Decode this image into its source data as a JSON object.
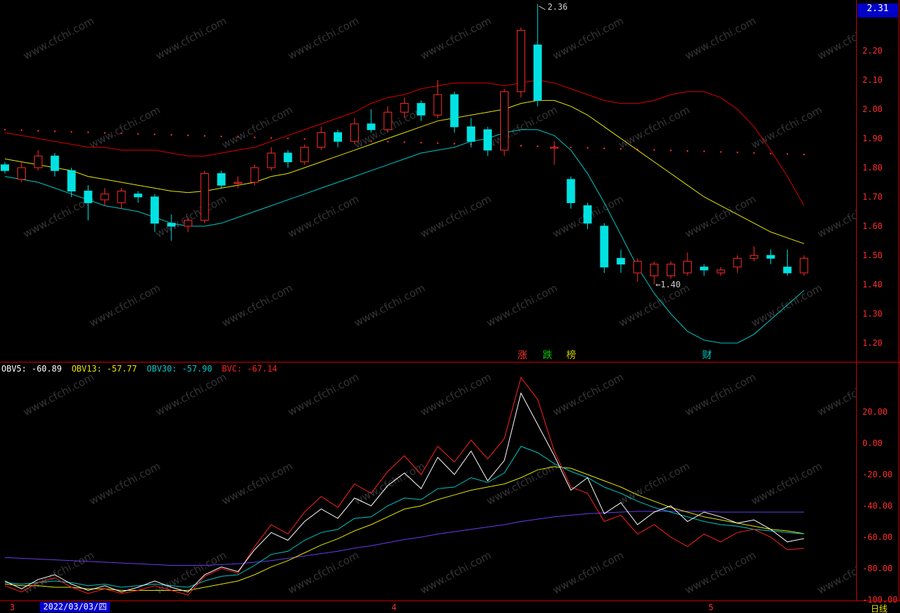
{
  "watermark": "www.cfchi.com",
  "price_tag": "2.31",
  "colors": {
    "background": "#000000",
    "frame": "#c80000",
    "axis_text": "#ff2d2d",
    "candle_up": "#ff2b2b",
    "candle_down": "#00e2e2",
    "boll_upper": "#dc0000",
    "boll_mid": "#e8e800",
    "boll_lower": "#00c8c8",
    "dot_line": "#ff2d2d",
    "obv5": "#ffffff",
    "obv13": "#e8e800",
    "obv30": "#00c8c8",
    "bvc": "#ff2020",
    "obv_extra": "#6a3cf0",
    "price_tag_bg": "#0000c8",
    "date_chip_bg": "#0000cc",
    "month_text": "#ff2d2d",
    "period_text": "#e8e800",
    "link_zhang": "#ff3232",
    "link_die": "#00c800",
    "link_bang": "#c8c800",
    "link_cai": "#00c8c8",
    "annotation_text": "#cfcfcf"
  },
  "divider": {
    "items": [
      {
        "label": "涨"
      },
      {
        "label": "跌"
      },
      {
        "label": "榜"
      },
      {
        "label": "财"
      }
    ]
  },
  "bottom_bar": {
    "months": [
      "3",
      "4",
      "5"
    ],
    "date_chip": "2022/03/03/四",
    "period": "日线"
  },
  "chart_data": [
    {
      "type": "candlestick",
      "title": "Daily K-line with BOLL bands",
      "y_axis_labels": [
        "2.20",
        "2.10",
        "2.00",
        "1.90",
        "1.80",
        "1.70",
        "1.60",
        "1.50",
        "1.40",
        "1.30",
        "1.20"
      ],
      "ylim": [
        1.18,
        2.37
      ],
      "annotations": {
        "high_label": "2.36",
        "low_label": "←1.40"
      },
      "dot_line": {
        "start": 1.93,
        "end": 1.845
      },
      "candles": [
        [
          1.81,
          1.82,
          1.78,
          1.79
        ],
        [
          1.76,
          1.82,
          1.75,
          1.8
        ],
        [
          1.8,
          1.86,
          1.79,
          1.84
        ],
        [
          1.84,
          1.85,
          1.77,
          1.79
        ],
        [
          1.79,
          1.8,
          1.7,
          1.72
        ],
        [
          1.72,
          1.74,
          1.62,
          1.68
        ],
        [
          1.69,
          1.73,
          1.67,
          1.71
        ],
        [
          1.68,
          1.73,
          1.66,
          1.72
        ],
        [
          1.71,
          1.72,
          1.68,
          1.7
        ],
        [
          1.7,
          1.71,
          1.58,
          1.61
        ],
        [
          1.61,
          1.64,
          1.55,
          1.6
        ],
        [
          1.6,
          1.63,
          1.58,
          1.62
        ],
        [
          1.62,
          1.79,
          1.61,
          1.78
        ],
        [
          1.78,
          1.79,
          1.73,
          1.74
        ],
        [
          1.75,
          1.77,
          1.73,
          1.75
        ],
        [
          1.75,
          1.81,
          1.74,
          1.8
        ],
        [
          1.8,
          1.87,
          1.79,
          1.85
        ],
        [
          1.85,
          1.86,
          1.8,
          1.82
        ],
        [
          1.82,
          1.88,
          1.81,
          1.87
        ],
        [
          1.87,
          1.94,
          1.86,
          1.92
        ],
        [
          1.92,
          1.93,
          1.87,
          1.89
        ],
        [
          1.89,
          1.97,
          1.88,
          1.95
        ],
        [
          1.95,
          2.0,
          1.92,
          1.93
        ],
        [
          1.93,
          2.01,
          1.92,
          1.99
        ],
        [
          1.99,
          2.04,
          1.97,
          2.02
        ],
        [
          2.02,
          2.03,
          1.96,
          1.98
        ],
        [
          1.98,
          2.1,
          1.97,
          2.05
        ],
        [
          2.05,
          2.06,
          1.92,
          1.94
        ],
        [
          1.94,
          1.97,
          1.87,
          1.89
        ],
        [
          1.93,
          1.94,
          1.84,
          1.86
        ],
        [
          1.86,
          2.07,
          1.84,
          2.06
        ],
        [
          2.06,
          2.28,
          2.04,
          2.27
        ],
        [
          2.22,
          2.36,
          2.01,
          2.03
        ],
        [
          1.87,
          1.89,
          1.81,
          1.87
        ],
        [
          1.76,
          1.77,
          1.66,
          1.68
        ],
        [
          1.67,
          1.68,
          1.59,
          1.61
        ],
        [
          1.6,
          1.61,
          1.44,
          1.46
        ],
        [
          1.49,
          1.52,
          1.44,
          1.47
        ],
        [
          1.44,
          1.49,
          1.41,
          1.48
        ],
        [
          1.43,
          1.48,
          1.4,
          1.47
        ],
        [
          1.43,
          1.48,
          1.42,
          1.47
        ],
        [
          1.44,
          1.51,
          1.43,
          1.48
        ],
        [
          1.46,
          1.47,
          1.43,
          1.45
        ],
        [
          1.44,
          1.46,
          1.43,
          1.45
        ],
        [
          1.46,
          1.5,
          1.44,
          1.49
        ],
        [
          1.49,
          1.53,
          1.48,
          1.5
        ],
        [
          1.5,
          1.52,
          1.47,
          1.49
        ],
        [
          1.46,
          1.52,
          1.43,
          1.44
        ],
        [
          1.44,
          1.5,
          1.43,
          1.49
        ]
      ],
      "boll": {
        "upper": [
          1.92,
          1.91,
          1.9,
          1.89,
          1.88,
          1.87,
          1.87,
          1.86,
          1.86,
          1.86,
          1.85,
          1.84,
          1.84,
          1.85,
          1.86,
          1.87,
          1.89,
          1.91,
          1.93,
          1.95,
          1.97,
          1.99,
          2.02,
          2.04,
          2.05,
          2.07,
          2.08,
          2.09,
          2.09,
          2.09,
          2.08,
          2.09,
          2.1,
          2.09,
          2.07,
          2.05,
          2.03,
          2.02,
          2.02,
          2.03,
          2.05,
          2.06,
          2.06,
          2.04,
          2.0,
          1.94,
          1.86,
          1.77,
          1.67
        ],
        "mid": [
          1.83,
          1.82,
          1.81,
          1.8,
          1.79,
          1.77,
          1.76,
          1.75,
          1.74,
          1.73,
          1.72,
          1.715,
          1.72,
          1.73,
          1.74,
          1.75,
          1.77,
          1.78,
          1.8,
          1.82,
          1.84,
          1.86,
          1.88,
          1.9,
          1.92,
          1.94,
          1.96,
          1.97,
          1.98,
          1.99,
          2.0,
          2.02,
          2.03,
          2.03,
          2.01,
          1.98,
          1.94,
          1.9,
          1.86,
          1.82,
          1.78,
          1.74,
          1.7,
          1.67,
          1.64,
          1.61,
          1.58,
          1.56,
          1.54
        ],
        "lower": [
          1.77,
          1.76,
          1.75,
          1.73,
          1.71,
          1.69,
          1.67,
          1.66,
          1.65,
          1.63,
          1.61,
          1.6,
          1.6,
          1.61,
          1.63,
          1.65,
          1.67,
          1.69,
          1.71,
          1.73,
          1.75,
          1.77,
          1.79,
          1.81,
          1.83,
          1.85,
          1.86,
          1.87,
          1.89,
          1.9,
          1.92,
          1.93,
          1.93,
          1.91,
          1.86,
          1.78,
          1.68,
          1.57,
          1.46,
          1.37,
          1.3,
          1.24,
          1.21,
          1.2,
          1.2,
          1.23,
          1.28,
          1.33,
          1.38
        ]
      }
    },
    {
      "type": "line",
      "title": "OBV indicator",
      "y_axis_labels": [
        "20.00",
        "0.00",
        "-20.00",
        "-40.00",
        "-60.00",
        "-80.00",
        "-100.00"
      ],
      "ylim": [
        -102,
        51
      ],
      "legend": [
        {
          "text": "OBV5: -60.89",
          "color_key": "obv5"
        },
        {
          "text": "OBV13: -57.77",
          "color_key": "obv13"
        },
        {
          "text": "OBV30: -57.90",
          "color_key": "obv30"
        },
        {
          "text": "BVC: -67.14",
          "color_key": "bvc"
        }
      ],
      "series": [
        {
          "name": "unlabeled-purple",
          "color_key": "obv_extra",
          "values": [
            -73,
            -73.5,
            -74,
            -74.5,
            -75,
            -75.5,
            -76,
            -76.5,
            -77,
            -77.5,
            -78,
            -78,
            -78,
            -77.5,
            -77,
            -76,
            -75,
            -73.5,
            -72,
            -70.5,
            -69,
            -67,
            -65.5,
            -63.5,
            -61.5,
            -60,
            -58,
            -56.5,
            -55,
            -53.5,
            -52,
            -50,
            -48.5,
            -47,
            -46,
            -45,
            -44.5,
            -44,
            -43.5,
            -43.5,
            -43.5,
            -43.5,
            -43.5,
            -44,
            -44,
            -44,
            -44,
            -44,
            -44
          ]
        },
        {
          "name": "OBV13",
          "color_key": "obv13",
          "values": [
            -90,
            -91,
            -91,
            -92,
            -92,
            -93,
            -93,
            -94,
            -94,
            -94,
            -94,
            -94,
            -92,
            -90,
            -88,
            -84,
            -79,
            -75,
            -70,
            -65,
            -61,
            -56,
            -52,
            -47,
            -42,
            -40,
            -36,
            -33,
            -30,
            -28,
            -26,
            -22,
            -17,
            -15,
            -16,
            -20,
            -24,
            -28,
            -33,
            -37,
            -41,
            -44,
            -47,
            -49,
            -51,
            -53,
            -55,
            -56,
            -57.77
          ]
        },
        {
          "name": "OBV30",
          "color_key": "obv30",
          "values": [
            -89,
            -90,
            -89,
            -88,
            -89,
            -91,
            -90,
            -92,
            -91,
            -90,
            -91,
            -92,
            -88,
            -85,
            -84,
            -78,
            -71,
            -69,
            -62,
            -57,
            -55,
            -48,
            -47,
            -40,
            -35,
            -36,
            -29,
            -28,
            -22,
            -25,
            -19,
            -2,
            -6,
            -13,
            -18,
            -22,
            -28,
            -32,
            -37,
            -41,
            -44,
            -47,
            -50,
            -52,
            -53,
            -55,
            -56,
            -57,
            -57.9
          ]
        },
        {
          "name": "BVC",
          "color_key": "bvc",
          "values": [
            -91,
            -95,
            -89,
            -86,
            -92,
            -96,
            -93,
            -96,
            -94,
            -91,
            -94,
            -97,
            -85,
            -80,
            -83,
            -66,
            -52,
            -58,
            -44,
            -34,
            -41,
            -26,
            -32,
            -18,
            -8,
            -20,
            -2,
            -12,
            2,
            -10,
            3,
            42,
            28,
            -5,
            -28,
            -32,
            -50,
            -46,
            -58,
            -52,
            -60,
            -66,
            -58,
            -63,
            -57,
            -55,
            -60,
            -68,
            -67.14
          ]
        },
        {
          "name": "OBV5",
          "color_key": "obv5",
          "values": [
            -88,
            -93,
            -87,
            -84,
            -90,
            -94,
            -91,
            -95,
            -92,
            -88,
            -92,
            -95,
            -84,
            -79,
            -82,
            -68,
            -57,
            -62,
            -50,
            -42,
            -48,
            -35,
            -40,
            -27,
            -19,
            -29,
            -9,
            -20,
            -5,
            -24,
            -11,
            32,
            12,
            -8,
            -30,
            -22,
            -45,
            -38,
            -52,
            -44,
            -40,
            -50,
            -44,
            -47,
            -51,
            -49,
            -55,
            -63,
            -60.89
          ]
        }
      ]
    }
  ]
}
